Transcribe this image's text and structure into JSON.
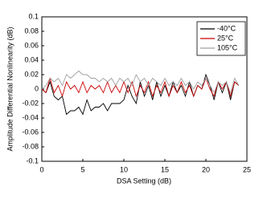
{
  "chart_data": {
    "type": "line",
    "xlabel": "DSA Setting (dB)",
    "ylabel": "Amplitude Differential Nonlinearity (dB)",
    "x": [
      0,
      0.5,
      1,
      1.5,
      2,
      2.5,
      3,
      3.5,
      4,
      4.5,
      5,
      5.5,
      6,
      6.5,
      7,
      7.5,
      8,
      8.5,
      9,
      9.5,
      10,
      10.5,
      11,
      11.5,
      12,
      12.5,
      13,
      13.5,
      14,
      14.5,
      15,
      15.5,
      16,
      16.5,
      17,
      17.5,
      18,
      18.5,
      19,
      19.5,
      20,
      20.5,
      21,
      21.5,
      22,
      22.5,
      23,
      23.5,
      24
    ],
    "series": [
      {
        "name": "-40°C",
        "color": "#000000",
        "values": [
          0,
          -0.005,
          0.01,
          -0.01,
          -0.015,
          -0.01,
          -0.035,
          -0.03,
          -0.03,
          -0.025,
          -0.035,
          -0.015,
          -0.03,
          -0.025,
          -0.025,
          -0.02,
          -0.03,
          -0.02,
          -0.02,
          -0.02,
          -0.015,
          0.005,
          -0.01,
          -0.02,
          0.01,
          -0.01,
          0.005,
          -0.015,
          0.01,
          -0.01,
          0.005,
          -0.01,
          0.01,
          -0.005,
          0.005,
          -0.01,
          0.01,
          -0.01,
          0.005,
          0,
          0.02,
          0.005,
          -0.015,
          0.01,
          -0.005,
          0.01,
          -0.015,
          0.01,
          0.005
        ]
      },
      {
        "name": "25°C",
        "color": "#cc0000",
        "values": [
          0,
          -0.005,
          0.015,
          -0.005,
          0.005,
          -0.01,
          0.01,
          0,
          0.005,
          -0.005,
          0.01,
          -0.005,
          0.005,
          0,
          0.005,
          -0.005,
          0.01,
          -0.005,
          0.005,
          -0.005,
          0.01,
          -0.005,
          0.01,
          -0.01,
          0.005,
          -0.005,
          0.01,
          -0.01,
          0.005,
          -0.005,
          0.01,
          -0.01,
          0.005,
          -0.005,
          0.01,
          -0.005,
          0.005,
          -0.01,
          0.005,
          0,
          0.015,
          0,
          -0.01,
          0.01,
          0,
          0.01,
          -0.01,
          0.01,
          0.005
        ]
      },
      {
        "name": "105°C",
        "color": "#a0a0a0",
        "values": [
          0,
          0.005,
          0.015,
          0.01,
          0.015,
          0.005,
          0.02,
          0.015,
          0.02,
          0.025,
          0.02,
          0.02,
          0.015,
          0.015,
          0.01,
          0.015,
          0.01,
          0.015,
          0.005,
          0.015,
          0.01,
          0.015,
          0.005,
          0.02,
          0.01,
          0.015,
          0.005,
          0.015,
          0.01,
          0.005,
          0.015,
          0.005,
          0.01,
          0.005,
          0.015,
          0.005,
          0.01,
          0,
          0.01,
          0.005,
          0.015,
          0.005,
          -0.005,
          0.01,
          0.005,
          0.01,
          -0.005,
          0.015,
          0.005
        ]
      }
    ],
    "xlim": [
      0,
      25
    ],
    "xticks": [
      0,
      5,
      10,
      15,
      20,
      25
    ],
    "ylim": [
      -0.1,
      0.1
    ],
    "yticks": [
      0.1,
      0.08,
      0.06,
      0.04,
      0.02,
      0,
      -0.02,
      -0.04,
      -0.06,
      -0.08,
      -0.1
    ],
    "legend": "top-right"
  }
}
